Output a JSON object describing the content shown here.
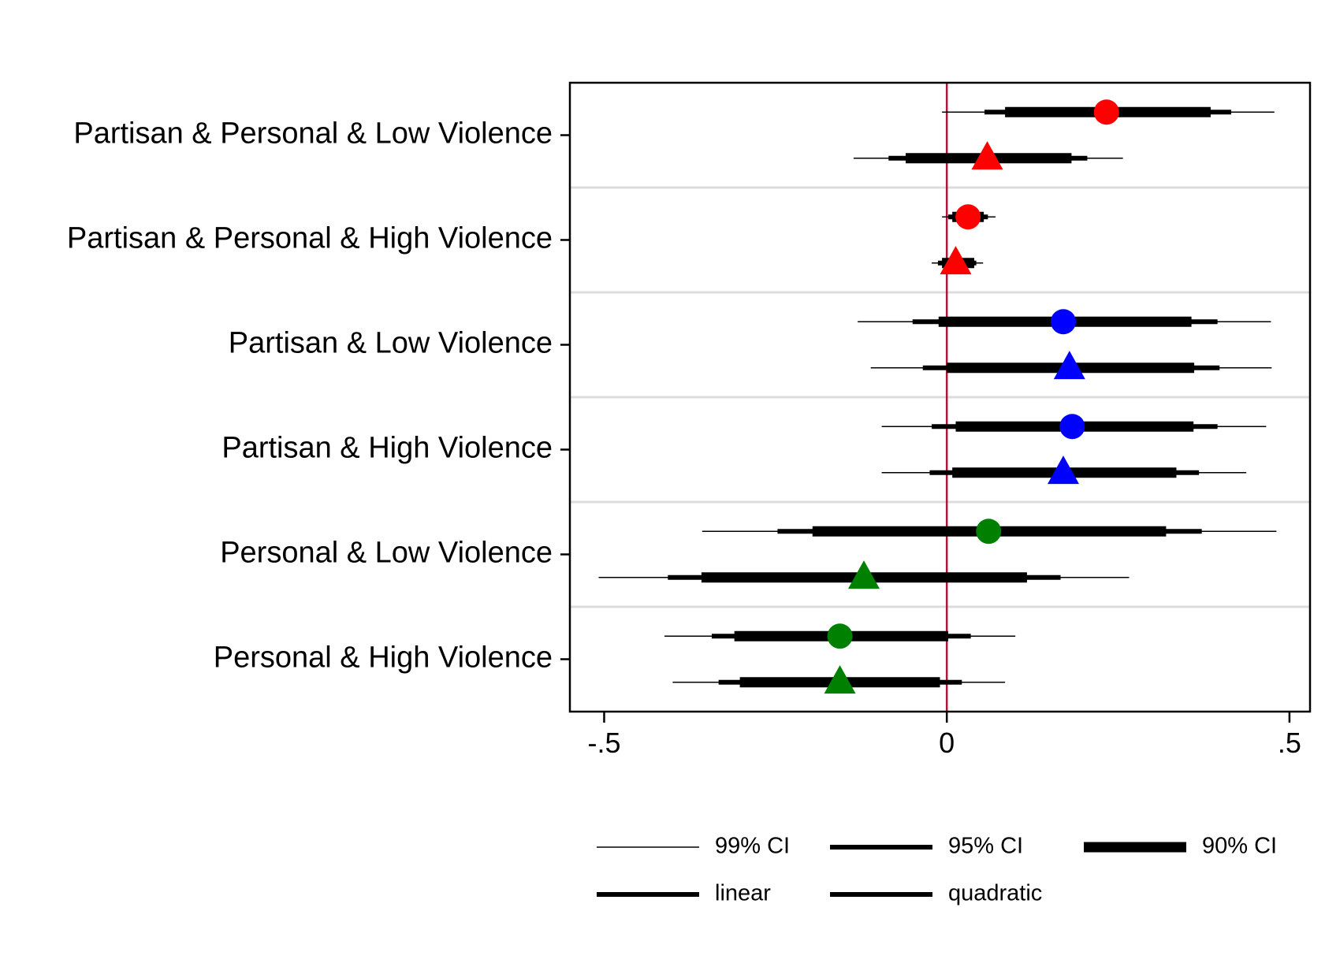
{
  "chart_data": {
    "type": "coefficient-plot",
    "title": "",
    "xlabel": "",
    "ylabel": "",
    "xlim": [
      -0.55,
      0.53
    ],
    "x_ticks": [
      {
        "value": -0.5,
        "label": "-.5"
      },
      {
        "value": 0,
        "label": "0"
      },
      {
        "value": 0.5,
        "label": ".5"
      }
    ],
    "reference_line": {
      "value": 0,
      "color": "#b0153c"
    },
    "colors": {
      "red": "#ff0000",
      "blue": "#0000ff",
      "green": "#008000"
    },
    "categories": [
      "Partisan & Personal & Low Violence",
      "Partisan & Personal & High Violence",
      "Partisan & Low Violence",
      "Partisan & High Violence",
      "Personal & Low Violence",
      "Personal & High Violence"
    ],
    "series": [
      {
        "model": "linear",
        "marker": "circle",
        "estimates": [
          {
            "color": "red",
            "point": 0.233,
            "ci99": [
              -0.007,
              0.478
            ],
            "ci95": [
              0.055,
              0.415
            ],
            "ci90": [
              0.085,
              0.385
            ]
          },
          {
            "color": "red",
            "point": 0.031,
            "ci99": [
              -0.007,
              0.071
            ],
            "ci95": [
              0.002,
              0.06
            ],
            "ci90": [
              0.008,
              0.054
            ]
          },
          {
            "color": "blue",
            "point": 0.17,
            "ci99": [
              -0.13,
              0.473
            ],
            "ci95": [
              -0.05,
              0.395
            ],
            "ci90": [
              -0.012,
              0.357
            ]
          },
          {
            "color": "blue",
            "point": 0.183,
            "ci99": [
              -0.095,
              0.466
            ],
            "ci95": [
              -0.022,
              0.395
            ],
            "ci90": [
              0.013,
              0.36
            ]
          },
          {
            "color": "green",
            "point": 0.061,
            "ci99": [
              -0.357,
              0.481
            ],
            "ci95": [
              -0.247,
              0.372
            ],
            "ci90": [
              -0.196,
              0.32
            ]
          },
          {
            "color": "green",
            "point": -0.156,
            "ci99": [
              -0.412,
              0.1
            ],
            "ci95": [
              -0.343,
              0.035
            ],
            "ci90": [
              -0.31,
              0.002
            ]
          }
        ]
      },
      {
        "model": "quadratic",
        "marker": "triangle",
        "estimates": [
          {
            "color": "red",
            "point": 0.059,
            "ci99": [
              -0.136,
              0.257
            ],
            "ci95": [
              -0.085,
              0.205
            ],
            "ci90": [
              -0.06,
              0.182
            ]
          },
          {
            "color": "red",
            "point": 0.013,
            "ci99": [
              -0.022,
              0.053
            ],
            "ci95": [
              -0.013,
              0.043
            ],
            "ci90": [
              -0.007,
              0.04
            ]
          },
          {
            "color": "blue",
            "point": 0.179,
            "ci99": [
              -0.111,
              0.474
            ],
            "ci95": [
              -0.035,
              0.398
            ],
            "ci90": [
              0.0,
              0.361
            ]
          },
          {
            "color": "blue",
            "point": 0.17,
            "ci99": [
              -0.095,
              0.437
            ],
            "ci95": [
              -0.025,
              0.368
            ],
            "ci90": [
              0.008,
              0.335
            ]
          },
          {
            "color": "green",
            "point": -0.121,
            "ci99": [
              -0.508,
              0.266
            ],
            "ci95": [
              -0.407,
              0.166
            ],
            "ci90": [
              -0.358,
              0.117
            ]
          },
          {
            "color": "green",
            "point": -0.156,
            "ci99": [
              -0.4,
              0.085
            ],
            "ci95": [
              -0.333,
              0.022
            ],
            "ci90": [
              -0.302,
              -0.01
            ]
          }
        ]
      }
    ],
    "legend": {
      "position": "bottom",
      "entries": [
        {
          "label": "99% CI",
          "style": "ci99"
        },
        {
          "label": "95% CI",
          "style": "ci95"
        },
        {
          "label": "90% CI",
          "style": "ci90"
        },
        {
          "label": "linear",
          "style": "model"
        },
        {
          "label": "quadratic",
          "style": "model"
        }
      ]
    },
    "grid": {
      "horizontal_separators": true
    }
  }
}
